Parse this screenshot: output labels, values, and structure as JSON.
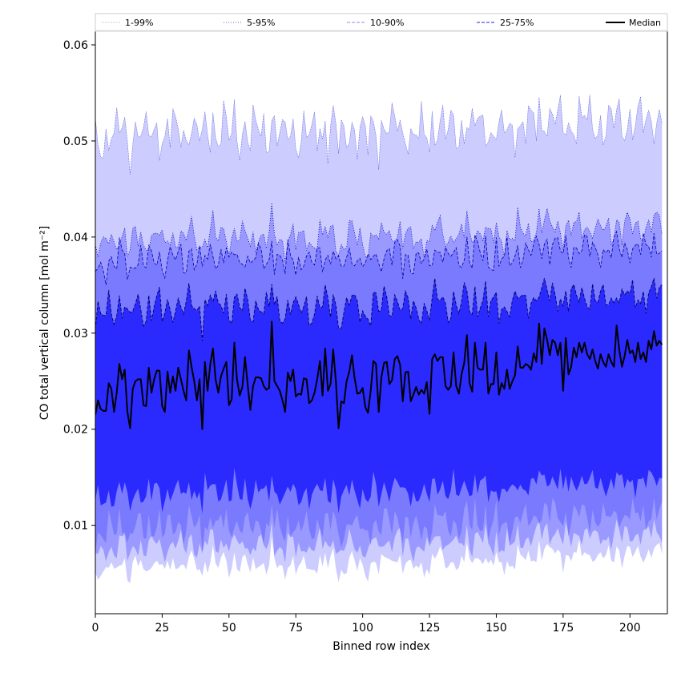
{
  "chart_data": {
    "type": "area",
    "xlabel": "Binned row index",
    "ylabel": "CO total vertical column [mol m⁻²]",
    "xlim": [
      0,
      214
    ],
    "ylim": [
      0.0008,
      0.0615
    ],
    "x_ticks": [
      0,
      25,
      50,
      75,
      100,
      125,
      150,
      175,
      200
    ],
    "y_ticks": [
      0.01,
      0.02,
      0.03,
      0.04,
      0.05,
      0.06
    ],
    "x_tick_labels": [
      "0",
      "25",
      "50",
      "75",
      "100",
      "125",
      "150",
      "175",
      "200"
    ],
    "y_tick_labels": [
      "0.01",
      "0.02",
      "0.03",
      "0.04",
      "0.05",
      "0.06"
    ],
    "legend_position": "top",
    "x_step": 1,
    "colors": {
      "band_1_99": "#ccccff",
      "band_5_95": "#9999ff",
      "band_10_90": "#7a7aff",
      "band_25_75": "#2a2aff",
      "median": "#000000",
      "edge": "#0000aa"
    },
    "legend": [
      {
        "label": "1-99%",
        "style": "dotted-thin"
      },
      {
        "label": "5-95%",
        "style": "dotted-blue"
      },
      {
        "label": "10-90%",
        "style": "dashed-light"
      },
      {
        "label": "25-75%",
        "style": "dashed-blue"
      },
      {
        "label": "Median",
        "style": "solid-black"
      }
    ],
    "series": [
      {
        "name": "Median",
        "values": [
          0.0215,
          0.023,
          0.0221,
          0.0219,
          0.0219,
          0.0248,
          0.0242,
          0.0218,
          0.0238,
          0.0268,
          0.0252,
          0.0262,
          0.0218,
          0.0201,
          0.0242,
          0.025,
          0.0252,
          0.0252,
          0.0225,
          0.0224,
          0.0264,
          0.0238,
          0.0252,
          0.0261,
          0.0261,
          0.0224,
          0.0218,
          0.026,
          0.0238,
          0.0255,
          0.024,
          0.0264,
          0.0252,
          0.024,
          0.023,
          0.0282,
          0.0265,
          0.025,
          0.023,
          0.0252,
          0.02,
          0.027,
          0.024,
          0.0268,
          0.0284,
          0.0252,
          0.0238,
          0.0255,
          0.0263,
          0.027,
          0.0225,
          0.0231,
          0.029,
          0.0252,
          0.0235,
          0.0244,
          0.0275,
          0.0246,
          0.022,
          0.0245,
          0.0254,
          0.0254,
          0.0253,
          0.0245,
          0.0241,
          0.0243,
          0.0312,
          0.025,
          0.0245,
          0.024,
          0.023,
          0.0218,
          0.0259,
          0.025,
          0.0262,
          0.0234,
          0.0237,
          0.0236,
          0.0253,
          0.0252,
          0.0227,
          0.023,
          0.0238,
          0.0252,
          0.0271,
          0.0235,
          0.0284,
          0.024,
          0.0247,
          0.0283,
          0.0249,
          0.0201,
          0.0229,
          0.0227,
          0.025,
          0.026,
          0.0277,
          0.0253,
          0.0237,
          0.0238,
          0.0243,
          0.0223,
          0.0217,
          0.024,
          0.0271,
          0.0268,
          0.0218,
          0.0254,
          0.0269,
          0.027,
          0.0247,
          0.0251,
          0.0273,
          0.0276,
          0.0267,
          0.0229,
          0.0259,
          0.026,
          0.0229,
          0.0236,
          0.0244,
          0.0236,
          0.0241,
          0.0237,
          0.0249,
          0.0216,
          0.0273,
          0.0278,
          0.0271,
          0.0275,
          0.0275,
          0.0245,
          0.0241,
          0.0245,
          0.028,
          0.0245,
          0.0237,
          0.0257,
          0.0269,
          0.0298,
          0.0248,
          0.0239,
          0.029,
          0.0264,
          0.0262,
          0.0262,
          0.029,
          0.0237,
          0.0247,
          0.0247,
          0.028,
          0.0236,
          0.0248,
          0.0242,
          0.0262,
          0.0242,
          0.025,
          0.0256,
          0.0286,
          0.0264,
          0.0264,
          0.0268,
          0.0266,
          0.0262,
          0.0279,
          0.027,
          0.031,
          0.0268,
          0.0305,
          0.0293,
          0.0277,
          0.0293,
          0.029,
          0.0277,
          0.029,
          0.024,
          0.0295,
          0.0257,
          0.0265,
          0.0285,
          0.0275,
          0.029,
          0.028,
          0.029,
          0.0278,
          0.0273,
          0.0283,
          0.0271,
          0.0263,
          0.0278,
          0.027,
          0.0265,
          0.0278,
          0.027,
          0.0265,
          0.0308,
          0.0283,
          0.0265,
          0.0276,
          0.0293,
          0.0279,
          0.0282,
          0.027,
          0.029,
          0.0273,
          0.028,
          0.027,
          0.0292,
          0.0283,
          0.0302,
          0.0287,
          0.0292,
          0.0288
        ]
      },
      {
        "name": "25-75%",
        "lower_base": 0.0135,
        "lower_amp": 0.0015,
        "upper_base": 0.0328,
        "upper_amp": 0.002
      },
      {
        "name": "10-90%",
        "lower_base": 0.01,
        "lower_amp": 0.002,
        "upper_base": 0.0378,
        "upper_amp": 0.002
      },
      {
        "name": "5-95%",
        "lower_base": 0.008,
        "lower_amp": 0.0015,
        "upper_base": 0.04,
        "upper_amp": 0.002
      },
      {
        "name": "1-99%",
        "lower_base": 0.006,
        "lower_amp": 0.0012,
        "upper_base": 0.051,
        "upper_amp": 0.0035
      }
    ]
  }
}
